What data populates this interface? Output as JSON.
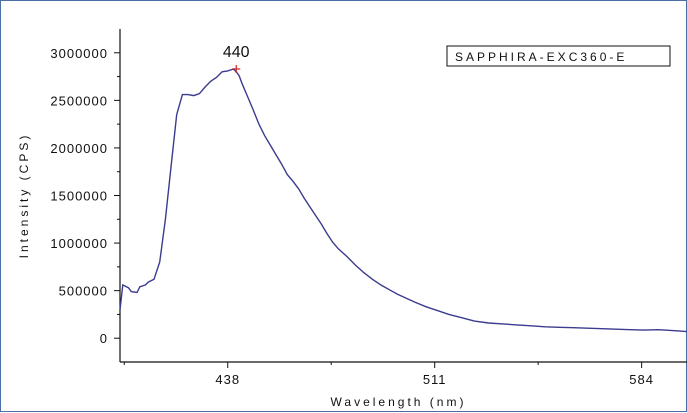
{
  "chart_data": {
    "type": "line",
    "xlabel": "Wavelength (nm)",
    "ylabel": "Intensity (CPS)",
    "xlim": [
      400,
      600
    ],
    "ylim": [
      -250000,
      3250000
    ],
    "x_ticks": [
      438,
      511,
      584
    ],
    "y_ticks": [
      0,
      500000,
      1000000,
      1500000,
      2000000,
      2500000,
      3000000
    ],
    "x_tick_labels": [
      "438",
      "511",
      "584"
    ],
    "y_tick_labels": [
      "0",
      "500000",
      "1000000",
      "1500000",
      "2000000",
      "2500000",
      "3000000"
    ],
    "grid": false,
    "legend_position": "top-right",
    "series": [
      {
        "name": "SAPPHIRA-EXC360-E",
        "color": "#3b3b8f",
        "x": [
          400,
          401,
          403,
          404,
          406,
          407,
          409,
          410,
          412,
          414,
          416,
          418,
          420,
          422,
          424,
          426,
          428,
          430,
          432,
          434,
          436,
          438,
          440,
          441,
          442,
          443,
          445,
          447,
          449,
          451,
          453,
          455,
          457,
          459,
          461,
          463,
          465,
          467,
          469,
          471,
          473,
          475,
          477,
          480,
          483,
          486,
          489,
          492,
          495,
          498,
          501,
          504,
          508,
          512,
          516,
          520,
          525,
          530,
          535,
          540,
          545,
          550,
          555,
          560,
          565,
          570,
          575,
          580,
          585,
          590,
          595,
          600
        ],
        "y": [
          300000,
          560000,
          530000,
          490000,
          480000,
          540000,
          560000,
          590000,
          620000,
          800000,
          1250000,
          1800000,
          2350000,
          2560000,
          2560000,
          2550000,
          2570000,
          2640000,
          2700000,
          2740000,
          2800000,
          2810000,
          2830000,
          2800000,
          2760000,
          2680000,
          2540000,
          2400000,
          2250000,
          2130000,
          2030000,
          1930000,
          1830000,
          1720000,
          1650000,
          1570000,
          1470000,
          1380000,
          1290000,
          1200000,
          1100000,
          1010000,
          940000,
          860000,
          770000,
          690000,
          620000,
          560000,
          510000,
          460000,
          420000,
          380000,
          330000,
          290000,
          250000,
          220000,
          180000,
          160000,
          150000,
          140000,
          130000,
          120000,
          115000,
          110000,
          105000,
          100000,
          95000,
          90000,
          85000,
          90000,
          80000,
          70000
        ]
      }
    ],
    "annotations": [
      {
        "text": "440",
        "x": 441,
        "y": 2830000,
        "marker": "+",
        "marker_color": "#cc2222"
      }
    ]
  }
}
